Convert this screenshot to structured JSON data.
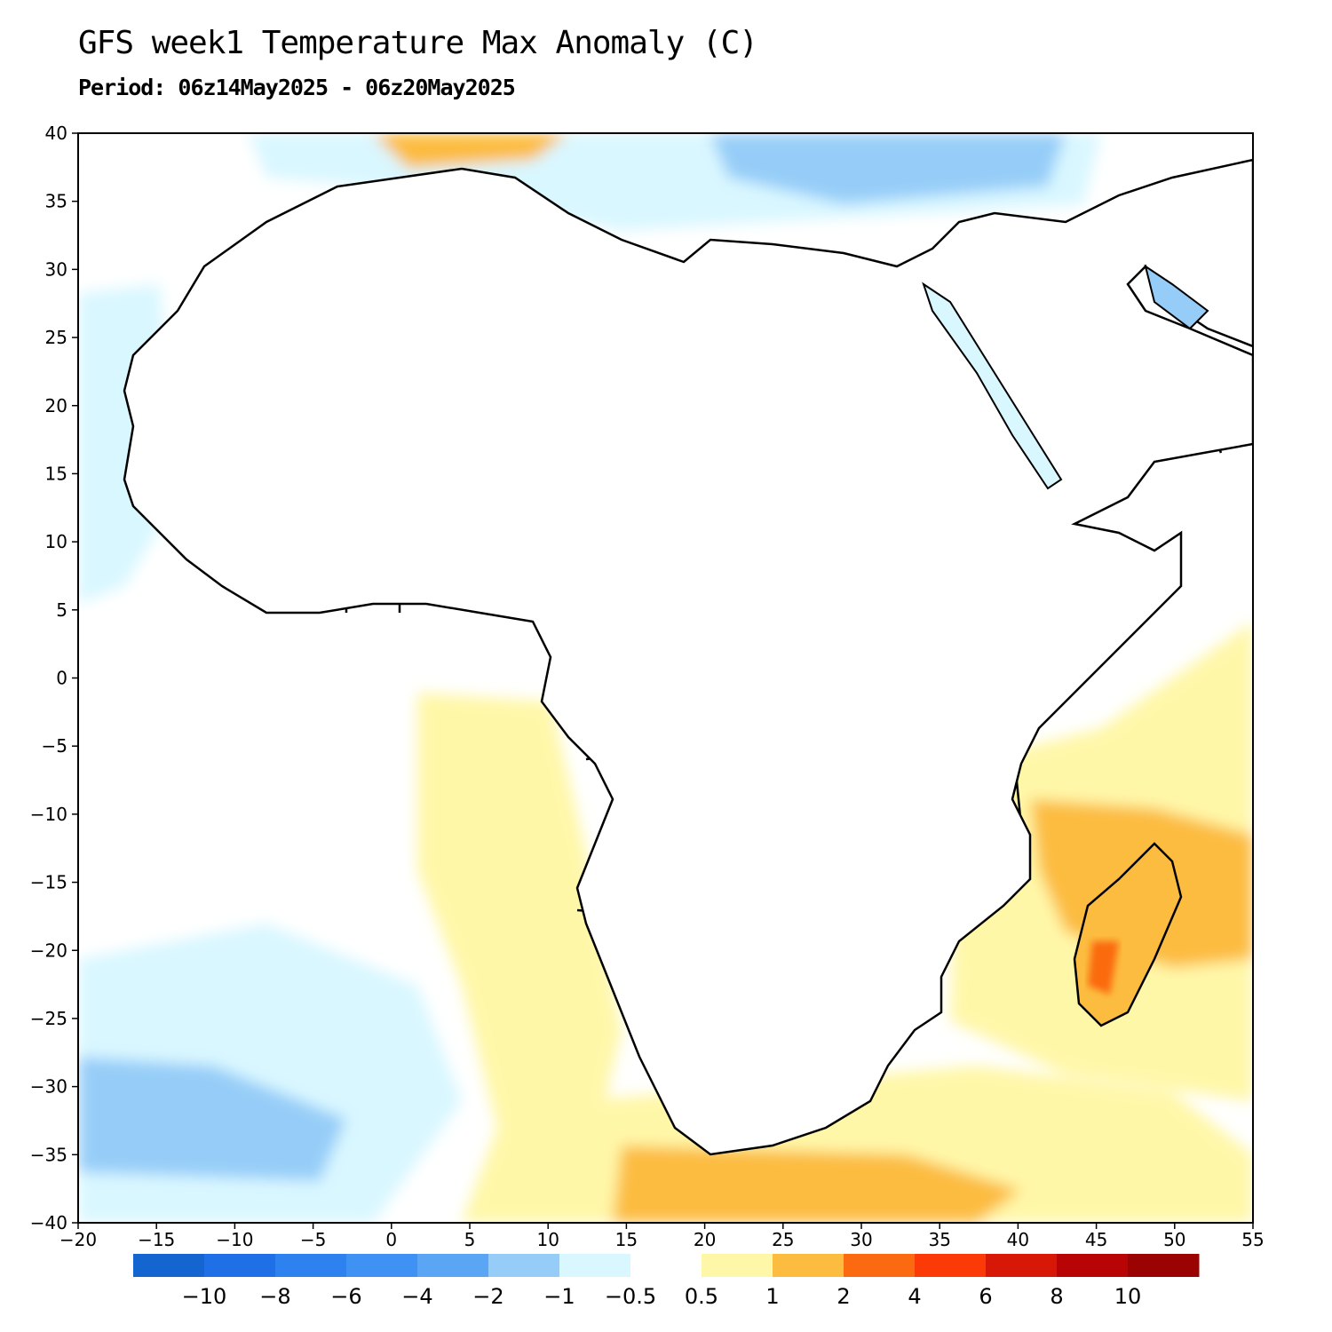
{
  "title": "GFS week1 Temperature Max Anomaly (C)",
  "subtitle": "Period: 06z14May2025 - 06z20May2025",
  "axes": {
    "x_ticks": [
      "-20",
      "-15",
      "-10",
      "-5",
      "0",
      "5",
      "10",
      "15",
      "20",
      "25",
      "30",
      "35",
      "40",
      "45",
      "50",
      "55"
    ],
    "y_ticks": [
      "40",
      "35",
      "30",
      "25",
      "20",
      "15",
      "10",
      "5",
      "0",
      "-5",
      "-10",
      "-15",
      "-20",
      "-25",
      "-30",
      "-35",
      "-40"
    ],
    "lon_range": [
      -20,
      55
    ],
    "lat_range": [
      -40,
      40
    ]
  },
  "colorbar": {
    "labels": [
      "-10",
      "-8",
      "-6",
      "-4",
      "-2",
      "-1",
      "-0.5",
      "0.5",
      "1",
      "2",
      "4",
      "6",
      "8",
      "10"
    ],
    "colors": [
      "#1565d0",
      "#1f6fe6",
      "#2e82f0",
      "#3f92f3",
      "#5aa6f5",
      "#96cdf8",
      "#d9f7ff",
      "#ffffff",
      "#fff7a8",
      "#fcbc40",
      "#fb6a10",
      "#fb3a08",
      "#d81806",
      "#b80404",
      "#9b0202"
    ]
  },
  "map_colors": {
    "ocean": "#ffffff",
    "land_outline": "#000000",
    "border_minor": "#9a9a9a"
  }
}
